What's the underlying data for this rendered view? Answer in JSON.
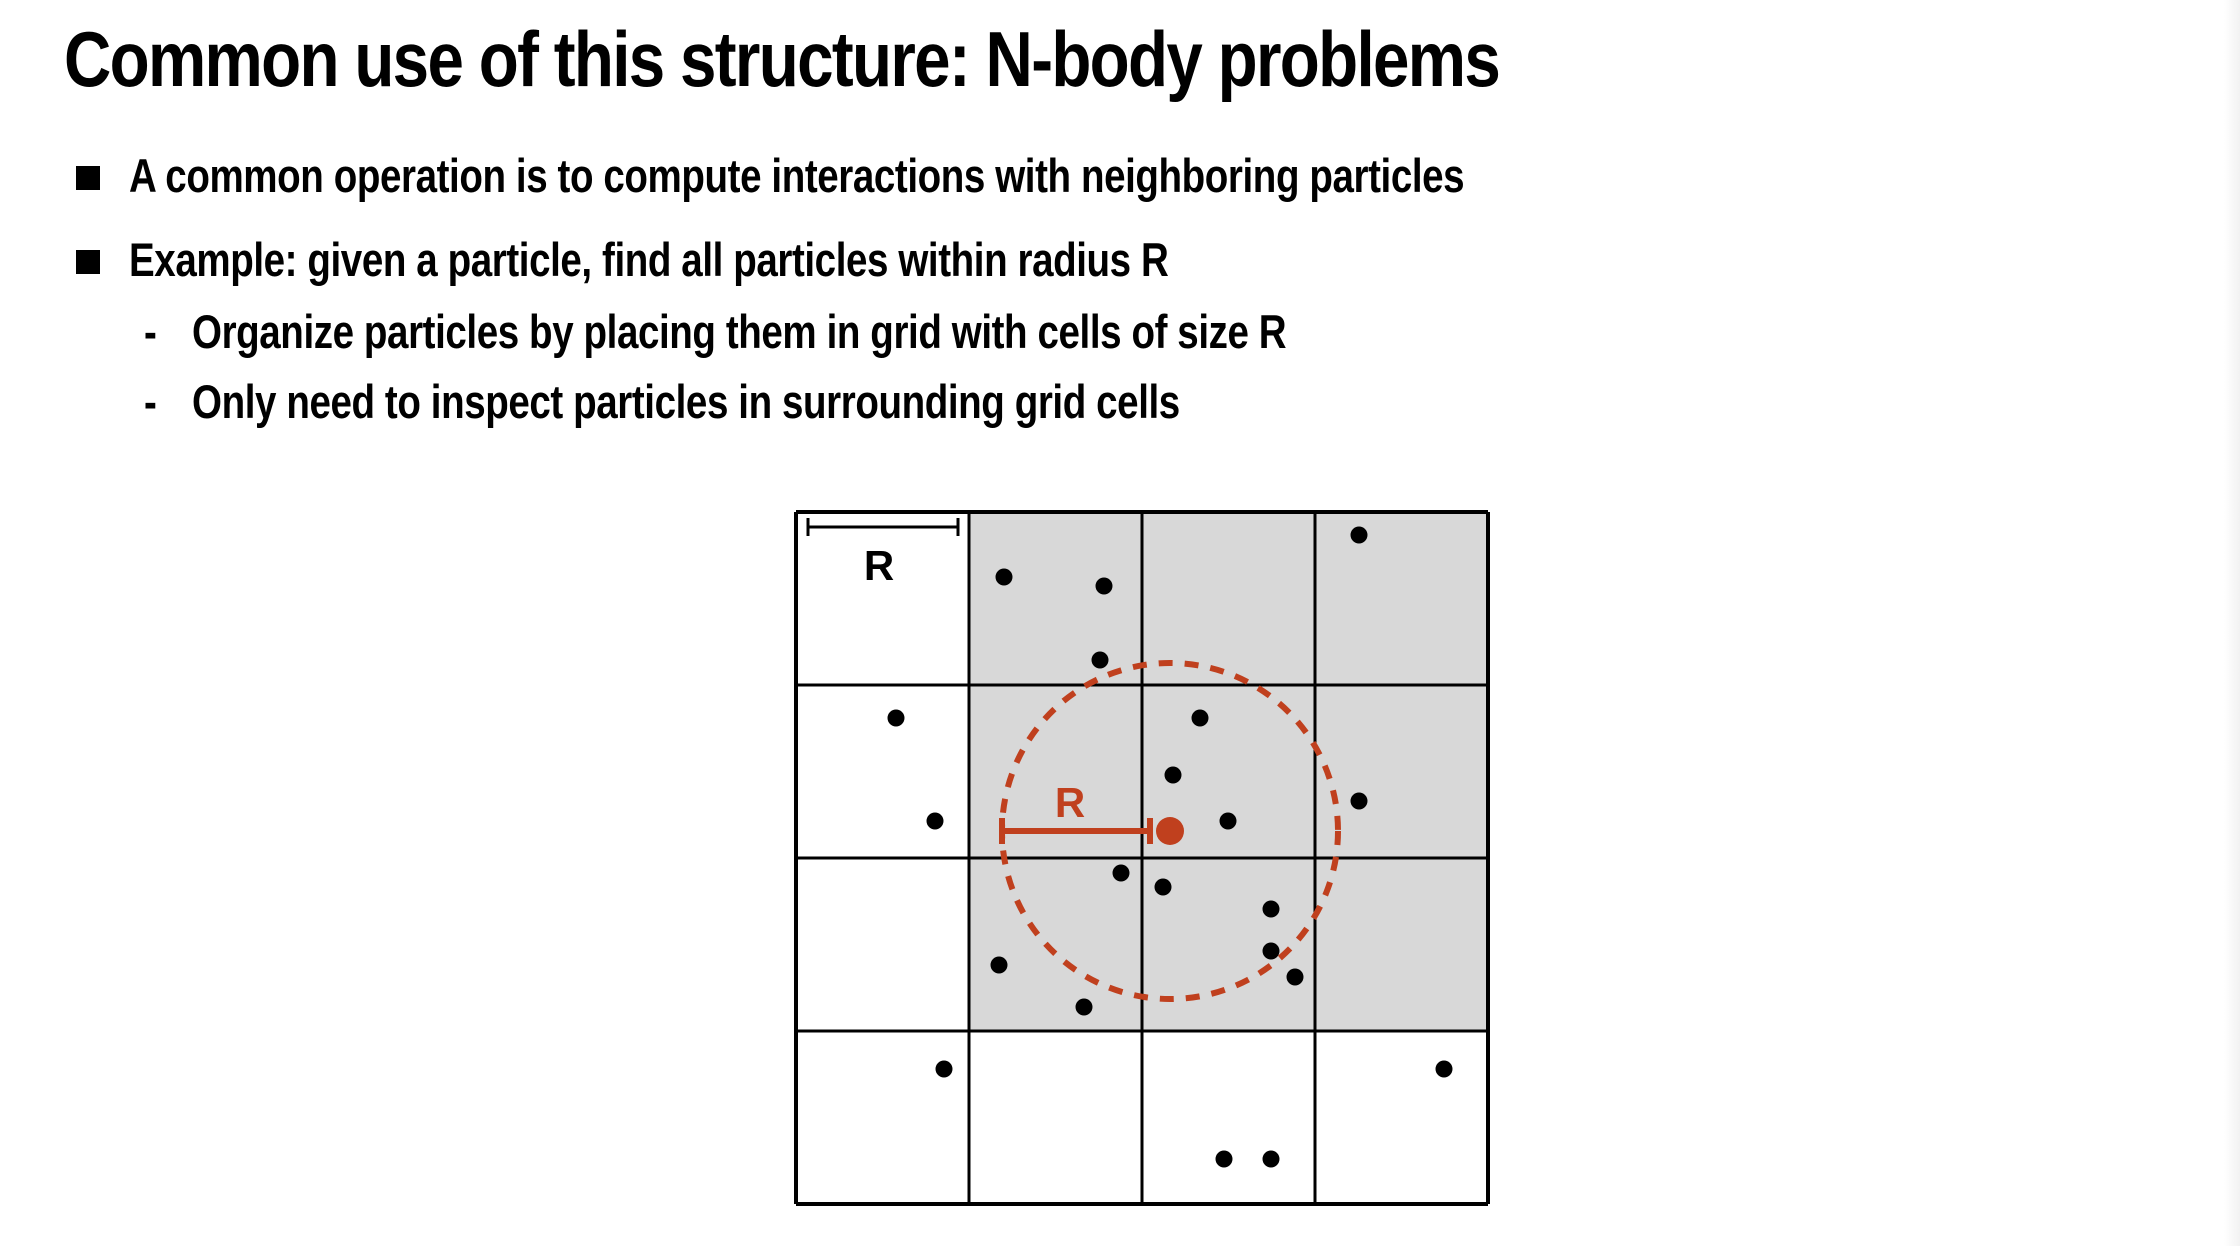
{
  "slide": {
    "title": "Common use of this structure: N-body problems",
    "bullets": [
      {
        "text": "A common operation is to compute interactions with neighboring particles"
      },
      {
        "text": "Example: given a particle, find all particles within radius R",
        "sub_bullets": [
          {
            "dash": "-",
            "text": "Organize particles by placing them in grid with cells of size R"
          },
          {
            "dash": "-",
            "text": "Only need to inspect particles in surrounding grid cells"
          }
        ]
      }
    ]
  },
  "diagram": {
    "grid_rows": 4,
    "grid_cols": 4,
    "cell_label": "R",
    "radius_label": "R",
    "shaded_cells": [
      [
        0,
        1
      ],
      [
        0,
        2
      ],
      [
        0,
        3
      ],
      [
        1,
        1
      ],
      [
        1,
        2
      ],
      [
        1,
        3
      ],
      [
        2,
        1
      ],
      [
        2,
        2
      ],
      [
        2,
        3
      ]
    ],
    "colors": {
      "shade": "#d8d8d8",
      "grid_line": "#000000",
      "particle": "#000000",
      "query": "#c0401e"
    }
  }
}
